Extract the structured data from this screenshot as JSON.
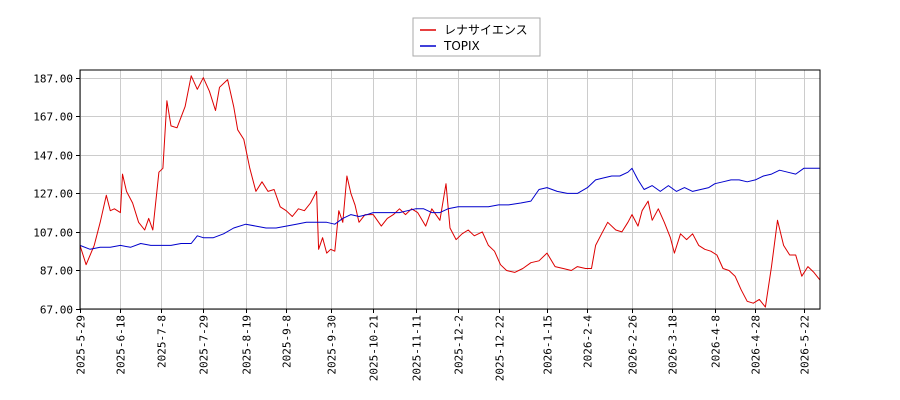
{
  "chart_data": {
    "type": "line",
    "title": "",
    "xlabel": "",
    "ylabel": "",
    "ylim": [
      67,
      191
    ],
    "yticks": [
      67,
      87,
      107,
      127,
      147,
      167,
      187
    ],
    "ytick_labels": [
      "67.00",
      "87.00",
      "107.00",
      "127.00",
      "147.00",
      "167.00",
      "187.00"
    ],
    "xlim": [
      "2025-05-29",
      "2026-05-30"
    ],
    "xticks": [
      "2025-5-29",
      "2025-6-18",
      "2025-7-8",
      "2025-7-29",
      "2025-8-19",
      "2025-9-8",
      "2025-9-30",
      "2025-10-21",
      "2025-11-11",
      "2025-12-2",
      "2025-12-22",
      "2026-1-15",
      "2026-2-4",
      "2026-2-26",
      "2026-3-18",
      "2026-4-8",
      "2026-4-28",
      "2026-5-22"
    ],
    "xtick_dates": [
      "2025-05-29",
      "2025-06-18",
      "2025-07-08",
      "2025-07-29",
      "2025-08-19",
      "2025-09-08",
      "2025-09-30",
      "2025-10-21",
      "2025-11-11",
      "2025-12-02",
      "2025-12-22",
      "2026-01-15",
      "2026-02-04",
      "2026-02-26",
      "2026-03-18",
      "2026-04-08",
      "2026-04-28",
      "2026-05-22"
    ],
    "grid": true,
    "legend_position": "top-center",
    "series": [
      {
        "name": "レナサイエンス",
        "color": "#dd0000",
        "points": [
          [
            "2025-05-29",
            100
          ],
          [
            "2025-06-01",
            90
          ],
          [
            "2025-06-05",
            100
          ],
          [
            "2025-06-08",
            112
          ],
          [
            "2025-06-11",
            126
          ],
          [
            "2025-06-13",
            118
          ],
          [
            "2025-06-15",
            119
          ],
          [
            "2025-06-18",
            117
          ],
          [
            "2025-06-19",
            137
          ],
          [
            "2025-06-21",
            128
          ],
          [
            "2025-06-24",
            122
          ],
          [
            "2025-06-27",
            112
          ],
          [
            "2025-06-30",
            108
          ],
          [
            "2025-07-02",
            114
          ],
          [
            "2025-07-04",
            108
          ],
          [
            "2025-07-07",
            138
          ],
          [
            "2025-07-09",
            140
          ],
          [
            "2025-07-11",
            175
          ],
          [
            "2025-07-13",
            162
          ],
          [
            "2025-07-16",
            161
          ],
          [
            "2025-07-20",
            172
          ],
          [
            "2025-07-23",
            188
          ],
          [
            "2025-07-26",
            181
          ],
          [
            "2025-07-29",
            187
          ],
          [
            "2025-08-01",
            180
          ],
          [
            "2025-08-04",
            170
          ],
          [
            "2025-08-06",
            182
          ],
          [
            "2025-08-10",
            186
          ],
          [
            "2025-08-13",
            172
          ],
          [
            "2025-08-15",
            160
          ],
          [
            "2025-08-18",
            155
          ],
          [
            "2025-08-21",
            140
          ],
          [
            "2025-08-24",
            128
          ],
          [
            "2025-08-27",
            133
          ],
          [
            "2025-08-30",
            128
          ],
          [
            "2025-09-02",
            129
          ],
          [
            "2025-09-05",
            120
          ],
          [
            "2025-09-08",
            118
          ],
          [
            "2025-09-11",
            115
          ],
          [
            "2025-09-14",
            119
          ],
          [
            "2025-09-17",
            118
          ],
          [
            "2025-09-20",
            122
          ],
          [
            "2025-09-23",
            128
          ],
          [
            "2025-09-24",
            98
          ],
          [
            "2025-09-26",
            104
          ],
          [
            "2025-09-28",
            96
          ],
          [
            "2025-09-30",
            98
          ],
          [
            "2025-10-02",
            97
          ],
          [
            "2025-10-04",
            118
          ],
          [
            "2025-10-06",
            112
          ],
          [
            "2025-10-08",
            136
          ],
          [
            "2025-10-10",
            127
          ],
          [
            "2025-10-12",
            121
          ],
          [
            "2025-10-14",
            112
          ],
          [
            "2025-10-17",
            116
          ],
          [
            "2025-10-21",
            116
          ],
          [
            "2025-10-25",
            110
          ],
          [
            "2025-10-28",
            114
          ],
          [
            "2025-10-31",
            116
          ],
          [
            "2025-11-03",
            119
          ],
          [
            "2025-11-06",
            116
          ],
          [
            "2025-11-09",
            119
          ],
          [
            "2025-11-12",
            117
          ],
          [
            "2025-11-16",
            110
          ],
          [
            "2025-11-19",
            119
          ],
          [
            "2025-11-23",
            113
          ],
          [
            "2025-11-26",
            132
          ],
          [
            "2025-11-28",
            109
          ],
          [
            "2025-12-01",
            103
          ],
          [
            "2025-12-04",
            106
          ],
          [
            "2025-12-07",
            108
          ],
          [
            "2025-12-10",
            105
          ],
          [
            "2025-12-14",
            107
          ],
          [
            "2025-12-17",
            100
          ],
          [
            "2025-12-20",
            97
          ],
          [
            "2025-12-23",
            90
          ],
          [
            "2025-12-26",
            87
          ],
          [
            "2025-12-30",
            86
          ],
          [
            "2026-01-03",
            88
          ],
          [
            "2026-01-07",
            91
          ],
          [
            "2026-01-11",
            92
          ],
          [
            "2026-01-15",
            96
          ],
          [
            "2026-01-19",
            89
          ],
          [
            "2026-01-23",
            88
          ],
          [
            "2026-01-27",
            87
          ],
          [
            "2026-01-30",
            89
          ],
          [
            "2026-02-03",
            88
          ],
          [
            "2026-02-06",
            88
          ],
          [
            "2026-02-08",
            100
          ],
          [
            "2026-02-11",
            106
          ],
          [
            "2026-02-14",
            112
          ],
          [
            "2026-02-18",
            108
          ],
          [
            "2026-02-21",
            107
          ],
          [
            "2026-02-24",
            112
          ],
          [
            "2026-02-26",
            116
          ],
          [
            "2026-03-01",
            110
          ],
          [
            "2026-03-03",
            118
          ],
          [
            "2026-03-06",
            123
          ],
          [
            "2026-03-08",
            113
          ],
          [
            "2026-03-11",
            119
          ],
          [
            "2026-03-14",
            112
          ],
          [
            "2026-03-17",
            104
          ],
          [
            "2026-03-19",
            96
          ],
          [
            "2026-03-22",
            106
          ],
          [
            "2026-03-25",
            103
          ],
          [
            "2026-03-28",
            106
          ],
          [
            "2026-03-31",
            100
          ],
          [
            "2026-04-03",
            98
          ],
          [
            "2026-04-06",
            97
          ],
          [
            "2026-04-09",
            95
          ],
          [
            "2026-04-12",
            88
          ],
          [
            "2026-04-15",
            87
          ],
          [
            "2026-04-18",
            84
          ],
          [
            "2026-04-21",
            77
          ],
          [
            "2026-04-24",
            71
          ],
          [
            "2026-04-27",
            70
          ],
          [
            "2026-04-30",
            72
          ],
          [
            "2026-05-03",
            68
          ],
          [
            "2026-05-06",
            89
          ],
          [
            "2026-05-09",
            113
          ],
          [
            "2026-05-12",
            100
          ],
          [
            "2026-05-15",
            95
          ],
          [
            "2026-05-18",
            95
          ],
          [
            "2026-05-21",
            84
          ],
          [
            "2026-05-24",
            89
          ],
          [
            "2026-05-27",
            86
          ],
          [
            "2026-05-30",
            82
          ]
        ]
      },
      {
        "name": "TOPIX",
        "color": "#0000cc",
        "points": [
          [
            "2025-05-29",
            100
          ],
          [
            "2025-06-03",
            98
          ],
          [
            "2025-06-08",
            99
          ],
          [
            "2025-06-13",
            99
          ],
          [
            "2025-06-18",
            100
          ],
          [
            "2025-06-23",
            99
          ],
          [
            "2025-06-28",
            101
          ],
          [
            "2025-07-03",
            100
          ],
          [
            "2025-07-08",
            100
          ],
          [
            "2025-07-13",
            100
          ],
          [
            "2025-07-18",
            101
          ],
          [
            "2025-07-23",
            101
          ],
          [
            "2025-07-26",
            105
          ],
          [
            "2025-07-29",
            104
          ],
          [
            "2025-08-03",
            104
          ],
          [
            "2025-08-08",
            106
          ],
          [
            "2025-08-13",
            109
          ],
          [
            "2025-08-19",
            111
          ],
          [
            "2025-08-24",
            110
          ],
          [
            "2025-08-29",
            109
          ],
          [
            "2025-09-03",
            109
          ],
          [
            "2025-09-08",
            110
          ],
          [
            "2025-09-13",
            111
          ],
          [
            "2025-09-18",
            112
          ],
          [
            "2025-09-23",
            112
          ],
          [
            "2025-09-28",
            112
          ],
          [
            "2025-10-02",
            111
          ],
          [
            "2025-10-06",
            114
          ],
          [
            "2025-10-10",
            116
          ],
          [
            "2025-10-14",
            115
          ],
          [
            "2025-10-18",
            116
          ],
          [
            "2025-10-21",
            117
          ],
          [
            "2025-10-25",
            117
          ],
          [
            "2025-10-29",
            117
          ],
          [
            "2025-11-03",
            117
          ],
          [
            "2025-11-07",
            118
          ],
          [
            "2025-11-11",
            119
          ],
          [
            "2025-11-15",
            119
          ],
          [
            "2025-11-19",
            117
          ],
          [
            "2025-11-23",
            117
          ],
          [
            "2025-11-27",
            119
          ],
          [
            "2025-12-02",
            120
          ],
          [
            "2025-12-07",
            120
          ],
          [
            "2025-12-12",
            120
          ],
          [
            "2025-12-17",
            120
          ],
          [
            "2025-12-22",
            121
          ],
          [
            "2025-12-27",
            121
          ],
          [
            "2026-01-02",
            122
          ],
          [
            "2026-01-07",
            123
          ],
          [
            "2026-01-11",
            129
          ],
          [
            "2026-01-15",
            130
          ],
          [
            "2026-01-20",
            128
          ],
          [
            "2026-01-25",
            127
          ],
          [
            "2026-01-30",
            127
          ],
          [
            "2026-02-04",
            130
          ],
          [
            "2026-02-08",
            134
          ],
          [
            "2026-02-12",
            135
          ],
          [
            "2026-02-16",
            136
          ],
          [
            "2026-02-20",
            136
          ],
          [
            "2026-02-24",
            138
          ],
          [
            "2026-02-26",
            140
          ],
          [
            "2026-03-01",
            134
          ],
          [
            "2026-03-04",
            129
          ],
          [
            "2026-03-08",
            131
          ],
          [
            "2026-03-12",
            128
          ],
          [
            "2026-03-16",
            131
          ],
          [
            "2026-03-20",
            128
          ],
          [
            "2026-03-24",
            130
          ],
          [
            "2026-03-28",
            128
          ],
          [
            "2026-04-01",
            129
          ],
          [
            "2026-04-05",
            130
          ],
          [
            "2026-04-08",
            132
          ],
          [
            "2026-04-12",
            133
          ],
          [
            "2026-04-16",
            134
          ],
          [
            "2026-04-20",
            134
          ],
          [
            "2026-04-24",
            133
          ],
          [
            "2026-04-28",
            134
          ],
          [
            "2026-05-02",
            136
          ],
          [
            "2026-05-06",
            137
          ],
          [
            "2026-05-10",
            139
          ],
          [
            "2026-05-14",
            138
          ],
          [
            "2026-05-18",
            137
          ],
          [
            "2026-05-22",
            140
          ],
          [
            "2026-05-26",
            140
          ],
          [
            "2026-05-30",
            140
          ]
        ]
      }
    ]
  }
}
